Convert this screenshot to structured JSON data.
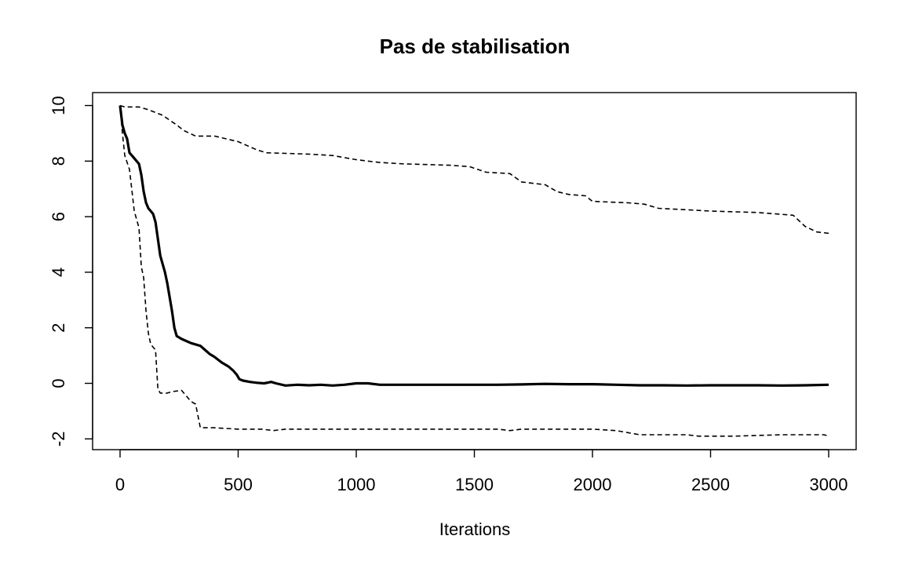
{
  "chart_data": {
    "type": "line",
    "title": "Pas de stabilisation",
    "xlabel": "Iterations",
    "ylabel": "",
    "xlim": [
      0,
      3000
    ],
    "ylim": [
      -2,
      10
    ],
    "x_ticks": [
      0,
      500,
      1000,
      1500,
      2000,
      2500,
      3000
    ],
    "y_ticks": [
      -2,
      0,
      2,
      4,
      6,
      8,
      10
    ],
    "x_tick_labels": [
      "0",
      "500",
      "1000",
      "1500",
      "2000",
      "2500",
      "3000"
    ],
    "y_tick_labels": [
      "-2",
      "0",
      "2",
      "4",
      "6",
      "8",
      "10"
    ],
    "grid": false,
    "legend": "none",
    "series": [
      {
        "style": "solid",
        "line_weight": "thick",
        "color": "#000000",
        "points": [
          [
            0,
            10
          ],
          [
            10,
            9.3
          ],
          [
            20,
            9.0
          ],
          [
            30,
            8.8
          ],
          [
            40,
            8.3
          ],
          [
            50,
            8.2
          ],
          [
            70,
            8.0
          ],
          [
            80,
            7.9
          ],
          [
            90,
            7.5
          ],
          [
            100,
            6.9
          ],
          [
            110,
            6.5
          ],
          [
            120,
            6.3
          ],
          [
            130,
            6.2
          ],
          [
            140,
            6.1
          ],
          [
            150,
            5.8
          ],
          [
            160,
            5.2
          ],
          [
            170,
            4.6
          ],
          [
            180,
            4.3
          ],
          [
            190,
            4.0
          ],
          [
            200,
            3.6
          ],
          [
            210,
            3.1
          ],
          [
            220,
            2.6
          ],
          [
            230,
            2.0
          ],
          [
            240,
            1.7
          ],
          [
            260,
            1.6
          ],
          [
            300,
            1.45
          ],
          [
            340,
            1.35
          ],
          [
            360,
            1.2
          ],
          [
            380,
            1.05
          ],
          [
            400,
            0.95
          ],
          [
            430,
            0.75
          ],
          [
            460,
            0.6
          ],
          [
            480,
            0.45
          ],
          [
            495,
            0.3
          ],
          [
            505,
            0.15
          ],
          [
            520,
            0.1
          ],
          [
            550,
            0.05
          ],
          [
            580,
            0.02
          ],
          [
            610,
            0.0
          ],
          [
            640,
            0.05
          ],
          [
            660,
            0.0
          ],
          [
            700,
            -0.08
          ],
          [
            750,
            -0.05
          ],
          [
            800,
            -0.07
          ],
          [
            850,
            -0.05
          ],
          [
            900,
            -0.08
          ],
          [
            950,
            -0.05
          ],
          [
            1000,
            0.0
          ],
          [
            1050,
            0.0
          ],
          [
            1100,
            -0.05
          ],
          [
            1200,
            -0.05
          ],
          [
            1300,
            -0.05
          ],
          [
            1400,
            -0.05
          ],
          [
            1500,
            -0.05
          ],
          [
            1600,
            -0.05
          ],
          [
            1700,
            -0.04
          ],
          [
            1800,
            -0.02
          ],
          [
            1900,
            -0.03
          ],
          [
            2000,
            -0.03
          ],
          [
            2100,
            -0.05
          ],
          [
            2200,
            -0.07
          ],
          [
            2300,
            -0.07
          ],
          [
            2400,
            -0.08
          ],
          [
            2500,
            -0.07
          ],
          [
            2600,
            -0.07
          ],
          [
            2700,
            -0.07
          ],
          [
            2800,
            -0.08
          ],
          [
            2900,
            -0.07
          ],
          [
            3000,
            -0.05
          ]
        ]
      },
      {
        "style": "dashed",
        "line_weight": "thin",
        "color": "#000000",
        "points": [
          [
            0,
            10
          ],
          [
            20,
            9.95
          ],
          [
            80,
            9.95
          ],
          [
            120,
            9.85
          ],
          [
            180,
            9.65
          ],
          [
            240,
            9.3
          ],
          [
            270,
            9.1
          ],
          [
            320,
            8.9
          ],
          [
            400,
            8.9
          ],
          [
            500,
            8.7
          ],
          [
            580,
            8.4
          ],
          [
            620,
            8.3
          ],
          [
            800,
            8.25
          ],
          [
            900,
            8.2
          ],
          [
            1000,
            8.05
          ],
          [
            1100,
            7.95
          ],
          [
            1200,
            7.9
          ],
          [
            1400,
            7.85
          ],
          [
            1480,
            7.8
          ],
          [
            1550,
            7.6
          ],
          [
            1650,
            7.55
          ],
          [
            1700,
            7.25
          ],
          [
            1800,
            7.15
          ],
          [
            1850,
            6.9
          ],
          [
            1900,
            6.8
          ],
          [
            1970,
            6.75
          ],
          [
            2000,
            6.55
          ],
          [
            2150,
            6.5
          ],
          [
            2220,
            6.45
          ],
          [
            2280,
            6.3
          ],
          [
            2400,
            6.25
          ],
          [
            2500,
            6.2
          ],
          [
            2700,
            6.15
          ],
          [
            2850,
            6.05
          ],
          [
            2900,
            5.65
          ],
          [
            2950,
            5.45
          ],
          [
            3000,
            5.4
          ]
        ]
      },
      {
        "style": "dashed",
        "line_weight": "thin",
        "color": "#000000",
        "points": [
          [
            0,
            10
          ],
          [
            10,
            9
          ],
          [
            20,
            8.2
          ],
          [
            40,
            7.7
          ],
          [
            60,
            6.2
          ],
          [
            80,
            5.6
          ],
          [
            90,
            4.2
          ],
          [
            100,
            3.8
          ],
          [
            110,
            2.6
          ],
          [
            120,
            1.8
          ],
          [
            130,
            1.4
          ],
          [
            150,
            1.2
          ],
          [
            160,
            -0.2
          ],
          [
            170,
            -0.35
          ],
          [
            200,
            -0.35
          ],
          [
            220,
            -0.3
          ],
          [
            260,
            -0.25
          ],
          [
            280,
            -0.45
          ],
          [
            300,
            -0.65
          ],
          [
            320,
            -0.75
          ],
          [
            340,
            -1.6
          ],
          [
            400,
            -1.6
          ],
          [
            500,
            -1.65
          ],
          [
            600,
            -1.65
          ],
          [
            650,
            -1.7
          ],
          [
            700,
            -1.65
          ],
          [
            800,
            -1.65
          ],
          [
            1000,
            -1.65
          ],
          [
            1500,
            -1.65
          ],
          [
            1600,
            -1.65
          ],
          [
            1650,
            -1.7
          ],
          [
            1700,
            -1.65
          ],
          [
            2000,
            -1.65
          ],
          [
            2100,
            -1.7
          ],
          [
            2200,
            -1.85
          ],
          [
            2300,
            -1.85
          ],
          [
            2400,
            -1.85
          ],
          [
            2450,
            -1.9
          ],
          [
            2600,
            -1.9
          ],
          [
            2800,
            -1.85
          ],
          [
            2980,
            -1.85
          ],
          [
            3000,
            -1.9
          ]
        ]
      }
    ]
  }
}
